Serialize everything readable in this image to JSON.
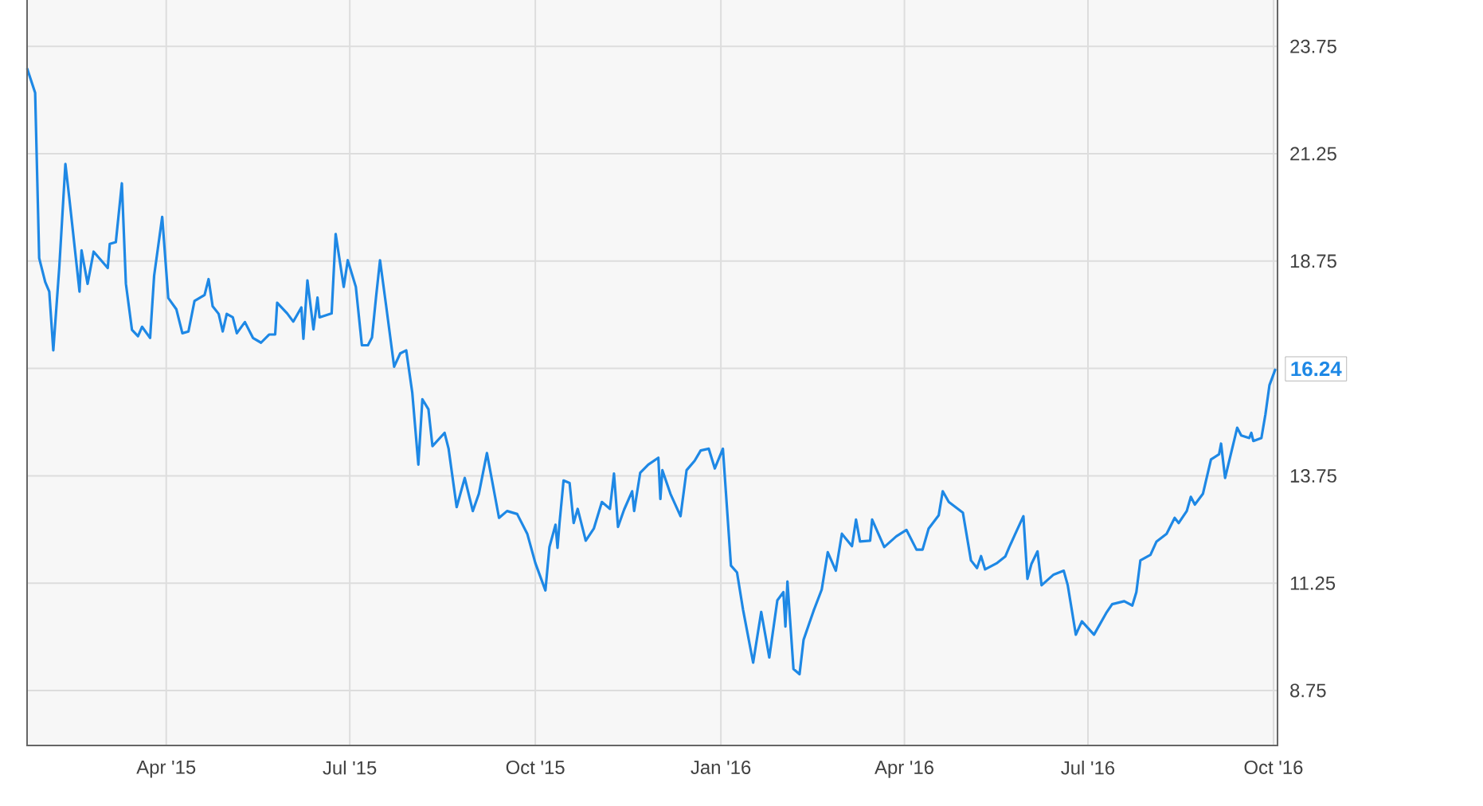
{
  "chart_data": {
    "type": "line",
    "color": "#1e88e5",
    "grid": true,
    "xlim": [
      "2015-01-22",
      "2016-10-03"
    ],
    "xticks": [
      {
        "value": "2015-04-01",
        "label": "Apr '15"
      },
      {
        "value": "2015-07-01",
        "label": "Jul '15"
      },
      {
        "value": "2015-10-01",
        "label": "Oct '15"
      },
      {
        "value": "2016-01-01",
        "label": "Jan '16"
      },
      {
        "value": "2016-04-01",
        "label": "Apr '16"
      },
      {
        "value": "2016-07-01",
        "label": "Jul '16"
      },
      {
        "value": "2016-10-01",
        "label": "Oct '16"
      }
    ],
    "ylim": [
      7.47,
      24.83
    ],
    "yticks": [
      8.75,
      11.25,
      13.75,
      {
        "value": 16.25,
        "label": null
      },
      18.75,
      21.25,
      23.75
    ],
    "annotations": [
      {
        "text": "16.24",
        "x": "2016-10-02",
        "y": 16.24
      }
    ],
    "x": [
      "2015-01-22",
      "2015-01-26",
      "2015-01-28",
      "2015-01-31",
      "2015-02-02",
      "2015-02-04",
      "2015-02-07",
      "2015-02-10",
      "2015-02-12",
      "2015-02-17",
      "2015-02-18",
      "2015-02-21",
      "2015-02-24",
      "2015-03-03",
      "2015-03-04",
      "2015-03-07",
      "2015-03-10",
      "2015-03-12",
      "2015-03-15",
      "2015-03-18",
      "2015-03-20",
      "2015-03-24",
      "2015-03-26",
      "2015-03-30",
      "2015-04-02",
      "2015-04-06",
      "2015-04-09",
      "2015-04-12",
      "2015-04-15",
      "2015-04-20",
      "2015-04-22",
      "2015-04-24",
      "2015-04-27",
      "2015-04-29",
      "2015-05-01",
      "2015-05-04",
      "2015-05-06",
      "2015-05-10",
      "2015-05-14",
      "2015-05-18",
      "2015-05-22",
      "2015-05-25",
      "2015-05-26",
      "2015-05-31",
      "2015-06-03",
      "2015-06-07",
      "2015-06-08",
      "2015-06-10",
      "2015-06-13",
      "2015-06-15",
      "2015-06-16",
      "2015-06-22",
      "2015-06-24",
      "2015-06-28",
      "2015-06-30",
      "2015-07-04",
      "2015-07-07",
      "2015-07-10",
      "2015-07-12",
      "2015-07-14",
      "2015-07-16",
      "2015-07-19",
      "2015-07-23",
      "2015-07-26",
      "2015-07-29",
      "2015-08-01",
      "2015-08-04",
      "2015-08-06",
      "2015-08-09",
      "2015-08-11",
      "2015-08-17",
      "2015-08-19",
      "2015-08-23",
      "2015-08-27",
      "2015-08-31",
      "2015-09-03",
      "2015-09-07",
      "2015-09-13",
      "2015-09-17",
      "2015-09-22",
      "2015-09-27",
      "2015-10-01",
      "2015-10-06",
      "2015-10-08",
      "2015-10-11",
      "2015-10-12",
      "2015-10-13",
      "2015-10-15",
      "2015-10-18",
      "2015-10-20",
      "2015-10-22",
      "2015-10-26",
      "2015-10-30",
      "2015-11-03",
      "2015-11-07",
      "2015-11-09",
      "2015-11-11",
      "2015-11-14",
      "2015-11-18",
      "2015-11-19",
      "2015-11-22",
      "2015-11-26",
      "2015-12-01",
      "2015-12-02",
      "2015-12-03",
      "2015-12-07",
      "2015-12-12",
      "2015-12-15",
      "2015-12-19",
      "2015-12-22",
      "2015-12-26",
      "2015-12-29",
      "2016-01-02",
      "2016-01-06",
      "2016-01-09",
      "2016-01-12",
      "2016-01-17",
      "2016-01-21",
      "2016-01-25",
      "2016-01-29",
      "2016-02-01",
      "2016-02-02",
      "2016-02-03",
      "2016-02-06",
      "2016-02-09",
      "2016-02-11",
      "2016-02-16",
      "2016-02-20",
      "2016-02-23",
      "2016-02-27",
      "2016-03-01",
      "2016-03-06",
      "2016-03-08",
      "2016-03-10",
      "2016-03-15",
      "2016-03-16",
      "2016-03-22",
      "2016-03-28",
      "2016-04-02",
      "2016-04-07",
      "2016-04-10",
      "2016-04-13",
      "2016-04-18",
      "2016-04-20",
      "2016-04-23",
      "2016-04-30",
      "2016-05-04",
      "2016-05-07",
      "2016-05-09",
      "2016-05-11",
      "2016-05-17",
      "2016-05-21",
      "2016-05-23",
      "2016-05-26",
      "2016-05-30",
      "2016-06-01",
      "2016-06-03",
      "2016-06-06",
      "2016-06-08",
      "2016-06-14",
      "2016-06-19",
      "2016-06-21",
      "2016-06-25",
      "2016-06-28",
      "2016-07-04",
      "2016-07-10",
      "2016-07-13",
      "2016-07-19",
      "2016-07-23",
      "2016-07-25",
      "2016-07-27",
      "2016-08-01",
      "2016-08-04",
      "2016-08-09",
      "2016-08-13",
      "2016-08-15",
      "2016-08-19",
      "2016-08-21",
      "2016-08-23",
      "2016-08-27",
      "2016-08-31",
      "2016-09-04",
      "2016-09-05",
      "2016-09-07",
      "2016-09-13",
      "2016-09-15",
      "2016-09-19",
      "2016-09-20",
      "2016-09-21",
      "2016-09-25",
      "2016-09-27",
      "2016-09-29",
      "2016-10-02"
    ],
    "values": [
      23.24,
      22.67,
      18.82,
      18.26,
      18.04,
      16.67,
      18.63,
      21.01,
      20.19,
      18.04,
      19.0,
      18.22,
      18.97,
      18.59,
      19.15,
      19.19,
      20.56,
      18.22,
      17.15,
      17.0,
      17.22,
      16.96,
      18.41,
      19.78,
      17.89,
      17.63,
      17.07,
      17.11,
      17.82,
      17.96,
      18.33,
      17.7,
      17.52,
      17.11,
      17.52,
      17.44,
      17.07,
      17.33,
      16.96,
      16.85,
      17.04,
      17.04,
      17.78,
      17.53,
      17.34,
      17.67,
      16.94,
      18.3,
      17.16,
      17.9,
      17.44,
      17.53,
      19.38,
      18.15,
      18.77,
      18.15,
      16.79,
      16.79,
      16.97,
      17.9,
      18.77,
      17.72,
      16.29,
      16.6,
      16.67,
      15.68,
      14.01,
      15.53,
      15.3,
      14.44,
      14.75,
      14.38,
      13.02,
      13.7,
      12.93,
      13.33,
      14.28,
      12.77,
      12.93,
      12.86,
      12.4,
      11.72,
      11.08,
      12.09,
      12.61,
      12.07,
      12.65,
      13.64,
      13.58,
      12.65,
      12.98,
      12.24,
      12.52,
      13.14,
      12.98,
      13.8,
      12.56,
      12.96,
      13.39,
      12.93,
      13.82,
      14.01,
      14.17,
      13.21,
      13.88,
      13.33,
      12.81,
      13.88,
      14.1,
      14.34,
      14.38,
      13.92,
      14.38,
      11.66,
      11.5,
      10.63,
      9.4,
      10.58,
      9.52,
      10.85,
      11.04,
      10.24,
      11.29,
      9.25,
      9.13,
      9.93,
      10.61,
      11.1,
      11.97,
      11.54,
      12.4,
      12.11,
      12.73,
      12.22,
      12.24,
      12.73,
      12.09,
      12.34,
      12.49,
      12.03,
      12.03,
      12.52,
      12.83,
      13.39,
      13.14,
      12.89,
      11.78,
      11.6,
      11.88,
      11.57,
      11.72,
      11.87,
      12.09,
      12.4,
      12.81,
      11.35,
      11.7,
      11.99,
      11.2,
      11.45,
      11.54,
      11.2,
      10.05,
      10.36,
      10.05,
      10.55,
      10.76,
      10.83,
      10.73,
      11.04,
      11.78,
      11.91,
      12.22,
      12.4,
      12.77,
      12.65,
      12.93,
      13.26,
      13.08,
      13.33,
      14.13,
      14.25,
      14.5,
      13.7,
      14.87,
      14.69,
      14.63,
      14.75,
      14.56,
      14.63,
      15.18,
      15.86,
      16.24
    ]
  }
}
